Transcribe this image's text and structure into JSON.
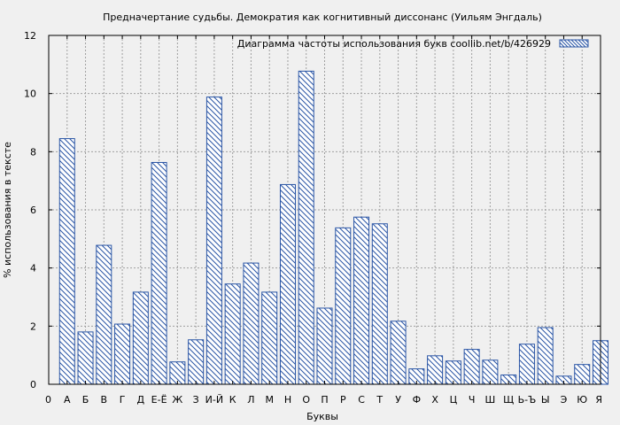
{
  "chart_data": {
    "type": "bar",
    "title": "Предначертание судьбы. Демократия как когнитивный диссонанс (Уильям Энгдаль)",
    "xlabel": "Буквы",
    "ylabel": "% использования в тексте",
    "ylim": [
      0,
      12
    ],
    "yticks": [
      0,
      2,
      4,
      6,
      8,
      10,
      12
    ],
    "grid": true,
    "legend": {
      "position": "top-right",
      "label": "Диаграмма частоты использования букв  coollib.net/b/426929"
    },
    "categories": [
      "0",
      "А",
      "Б",
      "В",
      "Г",
      "Д",
      "Е-Ё",
      "Ж",
      "З",
      "И-Й",
      "К",
      "Л",
      "М",
      "Н",
      "О",
      "П",
      "Р",
      "С",
      "Т",
      "У",
      "Ф",
      "Х",
      "Ц",
      "Ч",
      "Ш",
      "Щ",
      "Ь-Ъ",
      "Ы",
      "Э",
      "Ю",
      "Я"
    ],
    "values": [
      0,
      8.45,
      1.8,
      4.78,
      2.07,
      3.17,
      7.63,
      0.77,
      1.53,
      9.88,
      3.45,
      4.17,
      3.17,
      6.87,
      10.77,
      2.62,
      5.38,
      5.75,
      5.52,
      2.17,
      0.53,
      0.98,
      0.8,
      1.2,
      0.83,
      0.32,
      1.38,
      1.95,
      0.28,
      0.68,
      1.5
    ]
  },
  "colors": {
    "background": "#f0f0f0",
    "plot_border": "#000000",
    "grid": "#a0a0a0",
    "bar_stroke": "#2a55a5",
    "bar_fill": "#ffffff",
    "hatch": "#2a55a5"
  }
}
